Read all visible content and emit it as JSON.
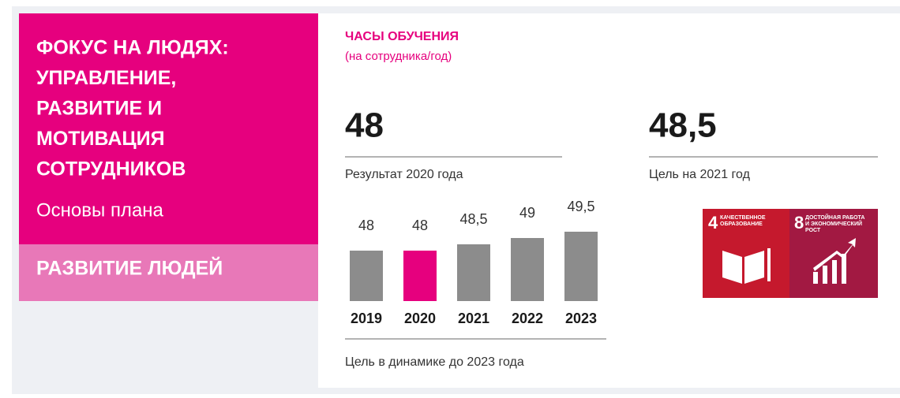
{
  "sidebar": {
    "title_lines": [
      "ФОКУС НА ЛЮДЯХ:",
      "УПРАВЛЕНИЕ,",
      "РАЗВИТИЕ И",
      "МОТИВАЦИЯ",
      "СОТРУДНИКОВ"
    ],
    "subtitle": "Основы плана",
    "section": "РАЗВИТИЕ ЛЮДЕЙ"
  },
  "header": {
    "title": "ЧАСЫ ОБУЧЕНИЯ",
    "subtitle": "(на сотрудника/год)"
  },
  "stats": [
    {
      "value": "48",
      "label": "Результат 2020 года"
    },
    {
      "value": "48,5",
      "label": "Цель на 2021 год"
    }
  ],
  "chart_data": {
    "type": "bar",
    "categories": [
      "2019",
      "2020",
      "2021",
      "2022",
      "2023"
    ],
    "values": [
      48,
      48,
      48.5,
      49,
      49.5
    ],
    "value_labels": [
      "48",
      "48",
      "48,5",
      "49",
      "49,5"
    ],
    "colors": [
      "#8c8c8c",
      "#e6007e",
      "#8c8c8c",
      "#8c8c8c",
      "#8c8c8c"
    ],
    "ylim": [
      44,
      50
    ],
    "caption": "Цель в динамике до 2023 года"
  },
  "sdg": [
    {
      "number": "4",
      "label_lines": [
        "КАЧЕСТВЕННОЕ",
        "ОБРАЗОВАНИЕ"
      ],
      "color": "#c5192d"
    },
    {
      "number": "8",
      "label_lines": [
        "ДОСТОЙНАЯ РАБОТА",
        "И ЭКОНОМИЧЕСКИЙ",
        "РОСТ"
      ],
      "color": "#a21942"
    }
  ]
}
